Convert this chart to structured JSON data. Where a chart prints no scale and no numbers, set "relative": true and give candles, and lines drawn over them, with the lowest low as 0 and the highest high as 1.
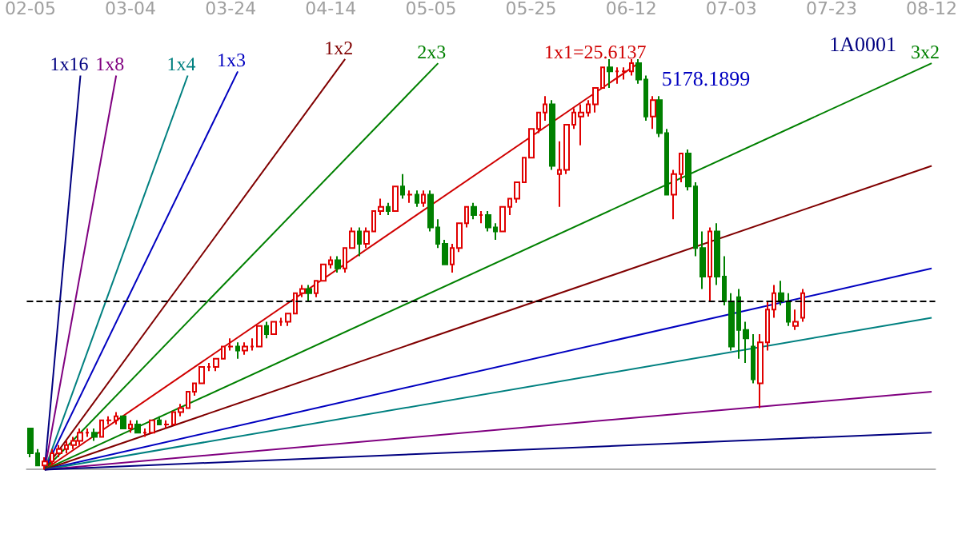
{
  "chart_data": {
    "type": "candlestick",
    "title": "1A0001",
    "relative": true,
    "legend": false,
    "grid": false,
    "marker": "none",
    "categories": [
      "02-05",
      null,
      null,
      null,
      null,
      null,
      null,
      null,
      null,
      null,
      null,
      null,
      null,
      null,
      "03-04",
      null,
      null,
      null,
      null,
      null,
      null,
      null,
      null,
      null,
      null,
      null,
      null,
      null,
      "03-24",
      null,
      null,
      null,
      null,
      null,
      null,
      null,
      null,
      null,
      null,
      null,
      null,
      null,
      "04-14",
      null,
      null,
      null,
      null,
      null,
      null,
      null,
      null,
      null,
      null,
      null,
      null,
      null,
      "05-05",
      null,
      null,
      null,
      null,
      null,
      null,
      null,
      null,
      null,
      null,
      null,
      null,
      null,
      "05-25",
      null,
      null,
      null,
      null,
      null,
      null,
      null,
      null,
      null,
      null,
      null,
      null,
      null,
      "06-12",
      null,
      null,
      null,
      null,
      null,
      null,
      null,
      null,
      null,
      null,
      null,
      null,
      null,
      "07-03",
      null,
      null,
      null,
      null,
      null,
      null,
      null,
      null,
      null,
      null,
      null,
      null,
      null,
      "07-23",
      null,
      null,
      null,
      null,
      null,
      null,
      null,
      null,
      null,
      null,
      null,
      null,
      null,
      "08-12"
    ],
    "ohlc": [
      [
        0.1,
        0.1,
        0.03,
        0.04
      ],
      [
        0.04,
        0.05,
        0.01,
        0.01
      ],
      [
        0.01,
        0.03,
        0.0,
        0.02
      ],
      [
        0.02,
        0.05,
        0.01,
        0.04
      ],
      [
        0.04,
        0.06,
        0.03,
        0.05
      ],
      [
        0.05,
        0.07,
        0.04,
        0.06
      ],
      [
        0.06,
        0.08,
        0.05,
        0.07
      ],
      [
        0.07,
        0.1,
        0.06,
        0.09
      ],
      [
        0.09,
        0.1,
        0.08,
        0.09
      ],
      [
        0.09,
        0.1,
        0.07,
        0.08
      ],
      [
        0.08,
        0.12,
        0.08,
        0.12
      ],
      [
        0.12,
        0.13,
        0.11,
        0.12
      ],
      [
        0.12,
        0.14,
        0.11,
        0.13
      ],
      [
        0.13,
        0.13,
        0.1,
        0.1
      ],
      [
        0.1,
        0.12,
        0.09,
        0.11
      ],
      [
        0.11,
        0.12,
        0.09,
        0.09
      ],
      [
        0.09,
        0.1,
        0.08,
        0.09
      ],
      [
        0.09,
        0.12,
        0.09,
        0.12
      ],
      [
        0.12,
        0.13,
        0.11,
        0.11
      ],
      [
        0.11,
        0.12,
        0.1,
        0.11
      ],
      [
        0.11,
        0.14,
        0.11,
        0.14
      ],
      [
        0.14,
        0.16,
        0.13,
        0.15
      ],
      [
        0.15,
        0.19,
        0.15,
        0.19
      ],
      [
        0.19,
        0.21,
        0.18,
        0.21
      ],
      [
        0.21,
        0.25,
        0.21,
        0.25
      ],
      [
        0.25,
        0.26,
        0.24,
        0.25
      ],
      [
        0.25,
        0.27,
        0.24,
        0.27
      ],
      [
        0.27,
        0.3,
        0.27,
        0.3
      ],
      [
        0.3,
        0.32,
        0.29,
        0.3
      ],
      [
        0.3,
        0.31,
        0.27,
        0.29
      ],
      [
        0.29,
        0.31,
        0.28,
        0.3
      ],
      [
        0.3,
        0.32,
        0.29,
        0.3
      ],
      [
        0.3,
        0.35,
        0.3,
        0.35
      ],
      [
        0.35,
        0.36,
        0.32,
        0.33
      ],
      [
        0.33,
        0.36,
        0.33,
        0.36
      ],
      [
        0.36,
        0.37,
        0.35,
        0.36
      ],
      [
        0.36,
        0.38,
        0.35,
        0.38
      ],
      [
        0.38,
        0.43,
        0.38,
        0.43
      ],
      [
        0.43,
        0.45,
        0.42,
        0.44
      ],
      [
        0.44,
        0.45,
        0.41,
        0.43
      ],
      [
        0.43,
        0.46,
        0.42,
        0.46
      ],
      [
        0.46,
        0.5,
        0.46,
        0.5
      ],
      [
        0.5,
        0.52,
        0.49,
        0.51
      ],
      [
        0.51,
        0.52,
        0.48,
        0.49
      ],
      [
        0.49,
        0.54,
        0.48,
        0.54
      ],
      [
        0.54,
        0.59,
        0.54,
        0.58
      ],
      [
        0.58,
        0.59,
        0.52,
        0.55
      ],
      [
        0.55,
        0.59,
        0.54,
        0.58
      ],
      [
        0.58,
        0.63,
        0.58,
        0.63
      ],
      [
        0.63,
        0.66,
        0.62,
        0.64
      ],
      [
        0.64,
        0.65,
        0.62,
        0.63
      ],
      [
        0.63,
        0.69,
        0.63,
        0.69
      ],
      [
        0.69,
        0.72,
        0.66,
        0.67
      ],
      [
        0.67,
        0.68,
        0.65,
        0.67
      ],
      [
        0.67,
        0.68,
        0.64,
        0.65
      ],
      [
        0.65,
        0.68,
        0.64,
        0.67
      ],
      [
        0.67,
        0.68,
        0.58,
        0.59
      ],
      [
        0.59,
        0.61,
        0.54,
        0.55
      ],
      [
        0.55,
        0.56,
        0.5,
        0.5
      ],
      [
        0.5,
        0.55,
        0.48,
        0.54
      ],
      [
        0.54,
        0.6,
        0.53,
        0.6
      ],
      [
        0.6,
        0.64,
        0.59,
        0.64
      ],
      [
        0.64,
        0.65,
        0.61,
        0.62
      ],
      [
        0.62,
        0.63,
        0.6,
        0.62
      ],
      [
        0.62,
        0.63,
        0.58,
        0.59
      ],
      [
        0.59,
        0.6,
        0.56,
        0.58
      ],
      [
        0.58,
        0.64,
        0.58,
        0.64
      ],
      [
        0.64,
        0.66,
        0.62,
        0.66
      ],
      [
        0.66,
        0.7,
        0.65,
        0.7
      ],
      [
        0.7,
        0.76,
        0.7,
        0.76
      ],
      [
        0.76,
        0.83,
        0.76,
        0.83
      ],
      [
        0.83,
        0.87,
        0.82,
        0.87
      ],
      [
        0.87,
        0.91,
        0.85,
        0.89
      ],
      [
        0.89,
        0.9,
        0.73,
        0.74
      ],
      [
        0.72,
        0.8,
        0.64,
        0.73
      ],
      [
        0.73,
        0.84,
        0.72,
        0.84
      ],
      [
        0.84,
        0.88,
        0.83,
        0.87
      ],
      [
        0.86,
        0.89,
        0.79,
        0.87
      ],
      [
        0.87,
        0.9,
        0.86,
        0.89
      ],
      [
        0.89,
        0.93,
        0.87,
        0.93
      ],
      [
        0.93,
        0.98,
        0.93,
        0.98
      ],
      [
        0.98,
        1.0,
        0.93,
        0.97
      ],
      [
        0.97,
        0.98,
        0.94,
        0.97
      ],
      [
        0.97,
        0.98,
        0.95,
        0.97
      ],
      [
        0.97,
        1.0,
        0.96,
        0.99
      ],
      [
        0.99,
        1.0,
        0.94,
        0.95
      ],
      [
        0.95,
        0.96,
        0.85,
        0.86
      ],
      [
        0.86,
        0.91,
        0.83,
        0.9
      ],
      [
        0.9,
        0.91,
        0.81,
        0.82
      ],
      [
        0.82,
        0.83,
        0.67,
        0.67
      ],
      [
        0.67,
        0.73,
        0.61,
        0.72
      ],
      [
        0.72,
        0.77,
        0.7,
        0.77
      ],
      [
        0.77,
        0.78,
        0.68,
        0.69
      ],
      [
        0.69,
        0.7,
        0.52,
        0.54
      ],
      [
        0.54,
        0.58,
        0.44,
        0.47
      ],
      [
        0.47,
        0.59,
        0.41,
        0.58
      ],
      [
        0.58,
        0.6,
        0.45,
        0.47
      ],
      [
        0.47,
        0.52,
        0.4,
        0.41
      ],
      [
        0.41,
        0.43,
        0.29,
        0.3
      ],
      [
        0.42,
        0.44,
        0.27,
        0.34
      ],
      [
        0.34,
        0.36,
        0.26,
        0.32
      ],
      [
        0.3,
        0.33,
        0.21,
        0.22
      ],
      [
        0.21,
        0.33,
        0.15,
        0.31
      ],
      [
        0.31,
        0.41,
        0.29,
        0.39
      ],
      [
        0.39,
        0.45,
        0.37,
        0.43
      ],
      [
        0.43,
        0.46,
        0.4,
        0.41
      ],
      [
        0.41,
        0.43,
        0.35,
        0.36
      ],
      [
        0.35,
        0.39,
        0.34,
        0.36
      ],
      [
        0.37,
        0.44,
        0.36,
        0.43
      ],
      null,
      null,
      null,
      null,
      null,
      null,
      null,
      null,
      null,
      null,
      null,
      null,
      null,
      null,
      null,
      null,
      null,
      null
    ],
    "series": [
      {
        "type": "line",
        "name": "1x16",
        "color": "#000080",
        "values": [
          null,
          null,
          0,
          null,
          null,
          null,
          null,
          0.96,
          null,
          null,
          null,
          null,
          null,
          null,
          null,
          null,
          null,
          null,
          null,
          null,
          null,
          null,
          null,
          null,
          null,
          null,
          null,
          null,
          null,
          null,
          null,
          null,
          null,
          null,
          null,
          null,
          null,
          null,
          null,
          null,
          null,
          null,
          null,
          null,
          null,
          null,
          null,
          null,
          null,
          null,
          null,
          null,
          null,
          null,
          null,
          null,
          null,
          null,
          null,
          null,
          null,
          null,
          null,
          null,
          null,
          null,
          null,
          null,
          null,
          null,
          null,
          null,
          null,
          null,
          null,
          null,
          null,
          null,
          null,
          null,
          null,
          null,
          null,
          null,
          null,
          null,
          null,
          null,
          null,
          null,
          null,
          null,
          null,
          null,
          null,
          null,
          null,
          null,
          null,
          null,
          null,
          null,
          null,
          null,
          null,
          null,
          null,
          null,
          null,
          null,
          null,
          null,
          null,
          null,
          null,
          null,
          null,
          null,
          null,
          null,
          null,
          null,
          null,
          null,
          null,
          null,
          null
        ]
      },
      {
        "type": "line",
        "name": "1x8",
        "color": "#800080",
        "values": [
          null,
          null,
          0,
          null,
          null,
          null,
          null,
          null,
          null,
          null,
          null,
          null,
          0.96,
          null,
          null,
          null,
          null,
          null,
          null,
          null,
          null,
          null,
          null,
          null,
          null,
          null,
          null,
          null,
          null,
          null,
          null,
          null,
          null,
          null,
          null,
          null,
          null,
          null,
          null,
          null,
          null,
          null,
          null,
          null,
          null,
          null,
          null,
          null,
          null,
          null,
          null,
          null,
          null,
          null,
          null,
          null,
          null,
          null,
          null,
          null,
          null,
          null,
          null,
          null,
          null,
          null,
          null,
          null,
          null,
          null,
          null,
          null,
          null,
          null,
          null,
          null,
          null,
          null,
          null,
          null,
          null,
          null,
          null,
          null,
          null,
          null,
          null,
          null,
          null,
          null,
          null,
          null,
          null,
          null,
          null,
          null,
          null,
          null,
          null,
          null,
          null,
          null,
          null,
          null,
          null,
          null,
          null,
          null,
          null,
          null,
          null,
          null,
          null,
          null,
          null,
          null,
          null,
          null,
          null,
          null,
          null,
          null,
          null,
          null,
          null,
          null,
          null
        ]
      },
      {
        "type": "line",
        "name": "1x4",
        "color": "#008080",
        "values": [
          null,
          null,
          0,
          null,
          null,
          null,
          null,
          null,
          null,
          null,
          null,
          null,
          null,
          null,
          null,
          null,
          null,
          null,
          null,
          null,
          null,
          null,
          0.96,
          null,
          null,
          null,
          null,
          null,
          null,
          null,
          null,
          null,
          null,
          null,
          null,
          null,
          null,
          null,
          null,
          null,
          null,
          null,
          null,
          null,
          null,
          null,
          null,
          null,
          null,
          null,
          null,
          null,
          null,
          null,
          null,
          null,
          null,
          null,
          null,
          null,
          null,
          null,
          null,
          null,
          null,
          null,
          null,
          null,
          null,
          null,
          null,
          null,
          null,
          null,
          null,
          null,
          null,
          null,
          null,
          null,
          null,
          null,
          null,
          null,
          null,
          null,
          null,
          null,
          null,
          null,
          null,
          null,
          null,
          null,
          null,
          null,
          null,
          null,
          null,
          null,
          null,
          null,
          null,
          null,
          null,
          null,
          null,
          null,
          null,
          null,
          null,
          null,
          null,
          null,
          null,
          null,
          null,
          null,
          null,
          null,
          null,
          null,
          null,
          null,
          null,
          null,
          null
        ]
      },
      {
        "type": "line",
        "name": "1x3",
        "color": "#0000c0",
        "values": [
          null,
          null,
          0,
          null,
          null,
          null,
          null,
          null,
          null,
          null,
          null,
          null,
          null,
          null,
          null,
          null,
          null,
          null,
          null,
          null,
          null,
          null,
          null,
          null,
          null,
          null,
          null,
          null,
          null,
          0.97,
          null,
          null,
          null,
          null,
          null,
          null,
          null,
          null,
          null,
          null,
          null,
          null,
          null,
          null,
          null,
          null,
          null,
          null,
          null,
          null,
          null,
          null,
          null,
          null,
          null,
          null,
          null,
          null,
          null,
          null,
          null,
          null,
          null,
          null,
          null,
          null,
          null,
          null,
          null,
          null,
          null,
          null,
          null,
          null,
          null,
          null,
          null,
          null,
          null,
          null,
          null,
          null,
          null,
          null,
          null,
          null,
          null,
          null,
          null,
          null,
          null,
          null,
          null,
          null,
          null,
          null,
          null,
          null,
          null,
          null,
          null,
          null,
          null,
          null,
          null,
          null,
          null,
          null,
          null,
          null,
          null,
          null,
          null,
          null,
          null,
          null,
          null,
          null,
          null,
          null,
          null,
          null,
          null,
          null,
          null,
          null,
          null
        ]
      },
      {
        "type": "line",
        "name": "1x2",
        "color": "#800000",
        "values": [
          null,
          null,
          0,
          null,
          null,
          null,
          null,
          null,
          null,
          null,
          null,
          null,
          null,
          null,
          null,
          null,
          null,
          null,
          null,
          null,
          null,
          null,
          null,
          null,
          null,
          null,
          null,
          null,
          null,
          null,
          null,
          null,
          null,
          null,
          null,
          null,
          null,
          null,
          null,
          null,
          null,
          null,
          null,
          null,
          1.0,
          null,
          null,
          null,
          null,
          null,
          null,
          null,
          null,
          null,
          null,
          null,
          null,
          null,
          null,
          null,
          null,
          null,
          null,
          null,
          null,
          null,
          null,
          null,
          null,
          null,
          null,
          null,
          null,
          null,
          null,
          null,
          null,
          null,
          null,
          null,
          null,
          null,
          null,
          null,
          null,
          null,
          null,
          null,
          null,
          null,
          null,
          null,
          null,
          null,
          null,
          null,
          null,
          null,
          null,
          null,
          null,
          null,
          null,
          null,
          null,
          null,
          null,
          null,
          null,
          null,
          null,
          null,
          null,
          null,
          null,
          null,
          null,
          null,
          null,
          null,
          null,
          null,
          null,
          null,
          null,
          null,
          null
        ]
      },
      {
        "type": "line",
        "name": "2x3",
        "color": "#008000",
        "values": [
          null,
          null,
          0,
          null,
          null,
          null,
          null,
          null,
          null,
          null,
          null,
          null,
          null,
          null,
          null,
          null,
          null,
          null,
          null,
          null,
          null,
          null,
          null,
          null,
          null,
          null,
          null,
          null,
          null,
          null,
          null,
          null,
          null,
          null,
          null,
          null,
          null,
          null,
          null,
          null,
          null,
          null,
          null,
          null,
          null,
          null,
          null,
          null,
          null,
          null,
          null,
          null,
          null,
          null,
          null,
          null,
          null,
          0.99,
          null,
          null,
          null,
          null,
          null,
          null,
          null,
          null,
          null,
          null,
          null,
          null,
          null,
          null,
          null,
          null,
          null,
          null,
          null,
          null,
          null,
          null,
          null,
          null,
          null,
          null,
          null,
          null,
          null,
          null,
          null,
          null,
          null,
          null,
          null,
          null,
          null,
          null,
          null,
          null,
          null,
          null,
          null,
          null,
          null,
          null,
          null,
          null,
          null,
          null,
          null,
          null,
          null,
          null,
          null,
          null,
          null,
          null,
          null,
          null,
          null,
          null,
          null,
          null,
          null,
          null,
          null,
          null,
          null
        ]
      },
      {
        "type": "line",
        "name": "1x1=25.6137",
        "color": "#d00000",
        "values": [
          null,
          null,
          0,
          null,
          null,
          null,
          null,
          null,
          null,
          null,
          null,
          null,
          null,
          null,
          null,
          null,
          null,
          null,
          null,
          null,
          null,
          null,
          null,
          null,
          null,
          null,
          null,
          null,
          null,
          null,
          null,
          null,
          null,
          null,
          null,
          null,
          null,
          null,
          null,
          null,
          null,
          null,
          null,
          null,
          null,
          null,
          null,
          null,
          null,
          null,
          null,
          null,
          null,
          null,
          null,
          null,
          null,
          null,
          null,
          null,
          null,
          null,
          null,
          null,
          null,
          null,
          null,
          null,
          null,
          null,
          null,
          null,
          null,
          null,
          null,
          null,
          null,
          null,
          null,
          null,
          null,
          null,
          null,
          null,
          null,
          0.99,
          null,
          null,
          null,
          null,
          null,
          null,
          null,
          null,
          null,
          null,
          null,
          null,
          null,
          null,
          null,
          null,
          null,
          null,
          null,
          null,
          null,
          null,
          null,
          null,
          null,
          null,
          null,
          null,
          null,
          null,
          null,
          null,
          null,
          null,
          null,
          null,
          null,
          null,
          null,
          null,
          null
        ]
      },
      {
        "type": "line",
        "name": "3x2",
        "color": "#008000",
        "values": [
          null,
          null,
          0,
          null,
          null,
          null,
          null,
          null,
          null,
          null,
          null,
          null,
          null,
          null,
          null,
          null,
          null,
          null,
          null,
          null,
          null,
          null,
          null,
          null,
          null,
          null,
          null,
          null,
          null,
          null,
          null,
          null,
          null,
          null,
          null,
          null,
          null,
          null,
          null,
          null,
          null,
          null,
          null,
          null,
          null,
          null,
          null,
          null,
          null,
          null,
          null,
          null,
          null,
          null,
          null,
          null,
          null,
          null,
          null,
          null,
          null,
          null,
          null,
          null,
          null,
          null,
          null,
          null,
          null,
          null,
          null,
          null,
          null,
          null,
          null,
          null,
          null,
          null,
          null,
          null,
          null,
          null,
          null,
          null,
          null,
          null,
          null,
          null,
          null,
          null,
          null,
          null,
          null,
          null,
          null,
          null,
          null,
          null,
          null,
          null,
          null,
          null,
          null,
          null,
          null,
          null,
          null,
          null,
          null,
          null,
          null,
          null,
          null,
          null,
          null,
          null,
          null,
          null,
          null,
          null,
          null,
          null,
          null,
          null,
          null,
          null,
          0.99
        ]
      },
      {
        "type": "line",
        "color": "#800000",
        "values": [
          null,
          null,
          0,
          null,
          null,
          null,
          null,
          null,
          null,
          null,
          null,
          null,
          null,
          null,
          null,
          null,
          null,
          null,
          null,
          null,
          null,
          null,
          null,
          null,
          null,
          null,
          null,
          null,
          null,
          null,
          null,
          null,
          null,
          null,
          null,
          null,
          null,
          null,
          null,
          null,
          null,
          null,
          null,
          null,
          null,
          null,
          null,
          null,
          null,
          null,
          null,
          null,
          null,
          null,
          null,
          null,
          null,
          null,
          null,
          null,
          null,
          null,
          null,
          null,
          null,
          null,
          null,
          null,
          null,
          null,
          null,
          null,
          null,
          null,
          null,
          null,
          null,
          null,
          null,
          null,
          null,
          null,
          null,
          null,
          null,
          null,
          null,
          null,
          null,
          null,
          null,
          null,
          null,
          null,
          null,
          null,
          null,
          null,
          null,
          null,
          null,
          null,
          null,
          null,
          null,
          null,
          null,
          null,
          null,
          null,
          null,
          null,
          null,
          null,
          null,
          null,
          null,
          null,
          null,
          null,
          null,
          null,
          null,
          null,
          null,
          null,
          0.74
        ]
      },
      {
        "type": "line",
        "color": "#0000c0",
        "values": [
          null,
          null,
          0,
          null,
          null,
          null,
          null,
          null,
          null,
          null,
          null,
          null,
          null,
          null,
          null,
          null,
          null,
          null,
          null,
          null,
          null,
          null,
          null,
          null,
          null,
          null,
          null,
          null,
          null,
          null,
          null,
          null,
          null,
          null,
          null,
          null,
          null,
          null,
          null,
          null,
          null,
          null,
          null,
          null,
          null,
          null,
          null,
          null,
          null,
          null,
          null,
          null,
          null,
          null,
          null,
          null,
          null,
          null,
          null,
          null,
          null,
          null,
          null,
          null,
          null,
          null,
          null,
          null,
          null,
          null,
          null,
          null,
          null,
          null,
          null,
          null,
          null,
          null,
          null,
          null,
          null,
          null,
          null,
          null,
          null,
          null,
          null,
          null,
          null,
          null,
          null,
          null,
          null,
          null,
          null,
          null,
          null,
          null,
          null,
          null,
          null,
          null,
          null,
          null,
          null,
          null,
          null,
          null,
          null,
          null,
          null,
          null,
          null,
          null,
          null,
          null,
          null,
          null,
          null,
          null,
          null,
          null,
          null,
          null,
          null,
          null,
          0.49
        ]
      },
      {
        "type": "line",
        "color": "#008080",
        "values": [
          null,
          null,
          0,
          null,
          null,
          null,
          null,
          null,
          null,
          null,
          null,
          null,
          null,
          null,
          null,
          null,
          null,
          null,
          null,
          null,
          null,
          null,
          null,
          null,
          null,
          null,
          null,
          null,
          null,
          null,
          null,
          null,
          null,
          null,
          null,
          null,
          null,
          null,
          null,
          null,
          null,
          null,
          null,
          null,
          null,
          null,
          null,
          null,
          null,
          null,
          null,
          null,
          null,
          null,
          null,
          null,
          null,
          null,
          null,
          null,
          null,
          null,
          null,
          null,
          null,
          null,
          null,
          null,
          null,
          null,
          null,
          null,
          null,
          null,
          null,
          null,
          null,
          null,
          null,
          null,
          null,
          null,
          null,
          null,
          null,
          null,
          null,
          null,
          null,
          null,
          null,
          null,
          null,
          null,
          null,
          null,
          null,
          null,
          null,
          null,
          null,
          null,
          null,
          null,
          null,
          null,
          null,
          null,
          null,
          null,
          null,
          null,
          null,
          null,
          null,
          null,
          null,
          null,
          null,
          null,
          null,
          null,
          null,
          null,
          null,
          null,
          0.37
        ]
      },
      {
        "type": "line",
        "color": "#800080",
        "values": [
          null,
          null,
          0,
          null,
          null,
          null,
          null,
          null,
          null,
          null,
          null,
          null,
          null,
          null,
          null,
          null,
          null,
          null,
          null,
          null,
          null,
          null,
          null,
          null,
          null,
          null,
          null,
          null,
          null,
          null,
          null,
          null,
          null,
          null,
          null,
          null,
          null,
          null,
          null,
          null,
          null,
          null,
          null,
          null,
          null,
          null,
          null,
          null,
          null,
          null,
          null,
          null,
          null,
          null,
          null,
          null,
          null,
          null,
          null,
          null,
          null,
          null,
          null,
          null,
          null,
          null,
          null,
          null,
          null,
          null,
          null,
          null,
          null,
          null,
          null,
          null,
          null,
          null,
          null,
          null,
          null,
          null,
          null,
          null,
          null,
          null,
          null,
          null,
          null,
          null,
          null,
          null,
          null,
          null,
          null,
          null,
          null,
          null,
          null,
          null,
          null,
          null,
          null,
          null,
          null,
          null,
          null,
          null,
          null,
          null,
          null,
          null,
          null,
          null,
          null,
          null,
          null,
          null,
          null,
          null,
          null,
          null,
          null,
          null,
          null,
          null,
          0.19
        ]
      },
      {
        "type": "line",
        "color": "#000080",
        "values": [
          null,
          null,
          0,
          null,
          null,
          null,
          null,
          null,
          null,
          null,
          null,
          null,
          null,
          null,
          null,
          null,
          null,
          null,
          null,
          null,
          null,
          null,
          null,
          null,
          null,
          null,
          null,
          null,
          null,
          null,
          null,
          null,
          null,
          null,
          null,
          null,
          null,
          null,
          null,
          null,
          null,
          null,
          null,
          null,
          null,
          null,
          null,
          null,
          null,
          null,
          null,
          null,
          null,
          null,
          null,
          null,
          null,
          null,
          null,
          null,
          null,
          null,
          null,
          null,
          null,
          null,
          null,
          null,
          null,
          null,
          null,
          null,
          null,
          null,
          null,
          null,
          null,
          null,
          null,
          null,
          null,
          null,
          null,
          null,
          null,
          null,
          null,
          null,
          null,
          null,
          null,
          null,
          null,
          null,
          null,
          null,
          null,
          null,
          null,
          null,
          null,
          null,
          null,
          null,
          null,
          null,
          null,
          null,
          null,
          null,
          null,
          null,
          null,
          null,
          null,
          null,
          null,
          null,
          null,
          null,
          null,
          null,
          null,
          null,
          null,
          null,
          0.09
        ]
      }
    ],
    "ref_lines": [
      {
        "axis": "y",
        "value": 0.41,
        "color": "#000000",
        "line_style": "dashed"
      }
    ],
    "annotations": [
      {
        "text": "5178.1899",
        "x": "06-12",
        "y": 1.0
      }
    ]
  }
}
